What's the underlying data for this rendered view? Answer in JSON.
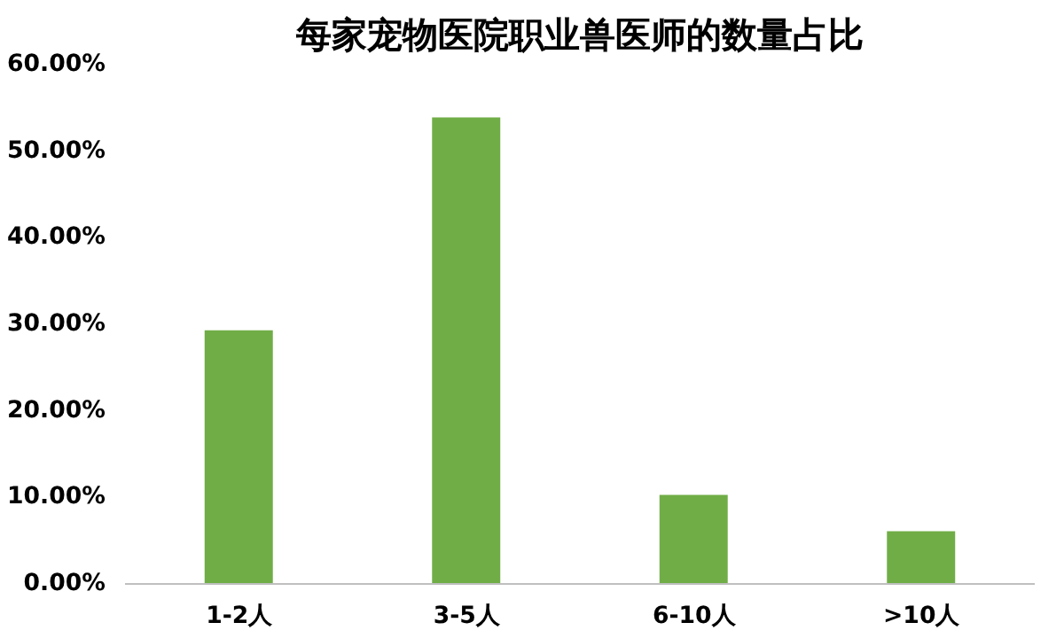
{
  "chart_data": {
    "type": "bar",
    "title": "每家宠物医院职业兽医师的数量占比",
    "categories": [
      "1-2人",
      "3-5人",
      "6-10人",
      ">10人"
    ],
    "values": [
      29.3,
      53.9,
      10.3,
      6.1
    ],
    "color": "#70ad47",
    "ylim": [
      0,
      60
    ],
    "yticks": [
      {
        "value": 0,
        "label": "0.00%"
      },
      {
        "value": 10,
        "label": "10.00%"
      },
      {
        "value": 20,
        "label": "20.00%"
      },
      {
        "value": 30,
        "label": "30.00%"
      },
      {
        "value": 40,
        "label": "40.00%"
      },
      {
        "value": 50,
        "label": "50.00%"
      },
      {
        "value": 60,
        "label": "60.00%"
      }
    ],
    "grid": false
  }
}
